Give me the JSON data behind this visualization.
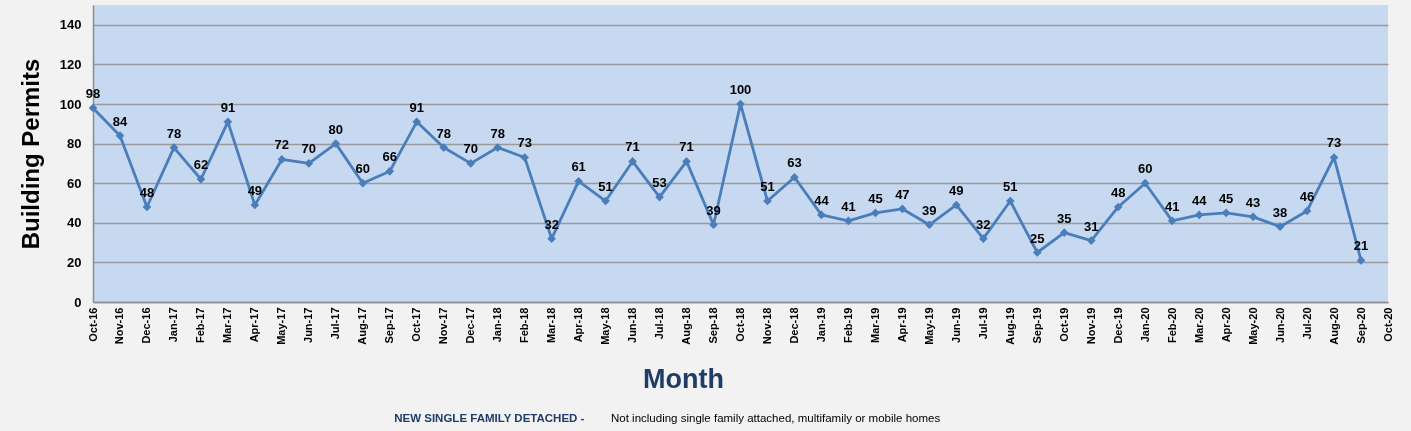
{
  "chart_data": {
    "type": "line",
    "xlabel": "Month",
    "ylabel": "Building Permits",
    "annotations": [
      "NEW SINGLE FAMILY DETACHED -",
      "Not including single family attached, multifamily or mobile homes"
    ],
    "categories": [
      "Oct-16",
      "Nov-16",
      "Dec-16",
      "Jan-17",
      "Feb-17",
      "Mar-17",
      "Apr-17",
      "May-17",
      "Jun-17",
      "Jul-17",
      "Aug-17",
      "Sep-17",
      "Oct-17",
      "Nov-17",
      "Dec-17",
      "Jan-18",
      "Feb-18",
      "Mar-18",
      "Apr-18",
      "May-18",
      "Jun-18",
      "Jul-18",
      "Aug-18",
      "Sep-18",
      "Oct-18",
      "Nov-18",
      "Dec-18",
      "Jan-19",
      "Feb-19",
      "Mar-19",
      "Apr-19",
      "May-19",
      "Jun-19",
      "Jul-19",
      "Aug-19",
      "Sep-19",
      "Oct-19",
      "Nov-19",
      "Dec-19",
      "Jan-20",
      "Feb-20",
      "Mar-20",
      "Apr-20",
      "May-20",
      "Jun-20",
      "Jul-20",
      "Aug-20",
      "Sep-20",
      "Oct-20"
    ],
    "series": [
      {
        "color": "#4a7ebb",
        "values": [
          98,
          84,
          48,
          78,
          62,
          91,
          49,
          72,
          70,
          80,
          60,
          66,
          91,
          78,
          70,
          78,
          73,
          32,
          61,
          51,
          71,
          53,
          71,
          39,
          100,
          51,
          63,
          44,
          41,
          45,
          47,
          39,
          49,
          32,
          51,
          25,
          35,
          31,
          48,
          60,
          41,
          44,
          45,
          43,
          38,
          46,
          73,
          21,
          null
        ]
      }
    ],
    "ylim": [
      0,
      150
    ],
    "yticks": [
      0,
      20,
      40,
      60,
      80,
      100,
      120,
      140
    ],
    "grid": "y",
    "marker": "diamond",
    "line_style": "solid",
    "data_labels": true
  }
}
